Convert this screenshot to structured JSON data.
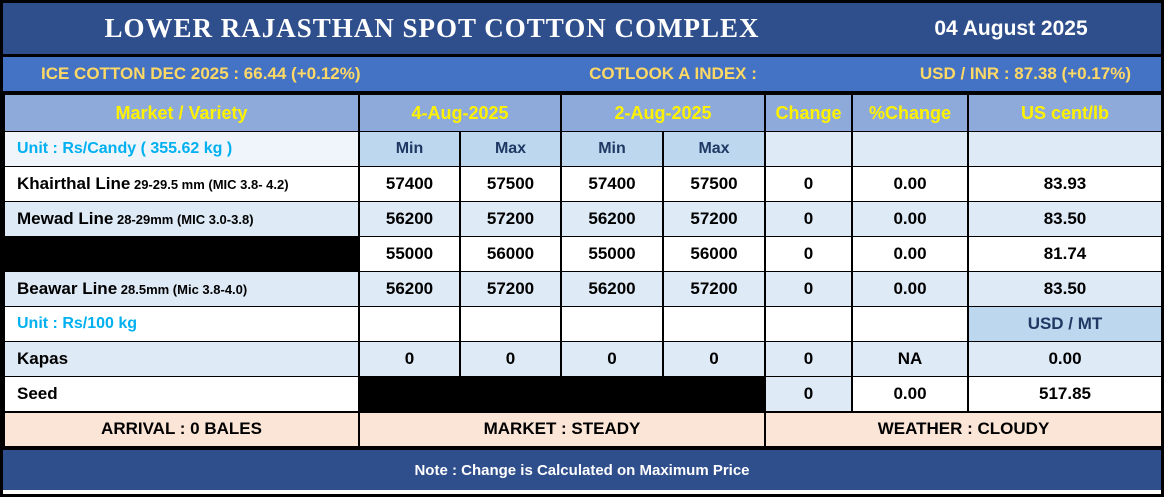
{
  "colors": {
    "band_dark": "#2F4E8C",
    "ticker_blue": "#4472C4",
    "header_blue": "#8EAADB",
    "minmax_blue": "#BDD7EE",
    "row_shade": "#DEEAF6",
    "unit_row_tint": "#EFF5FB",
    "footer_peach": "#FBE5D6",
    "gold_text": "#FFD966",
    "yellow_text": "#FFF200",
    "navy_text": "#1F3864",
    "cyan_text": "#00B0F0"
  },
  "title_bar": {
    "title": "LOWER RAJASTHAN SPOT COTTON COMPLEX",
    "date": "04 August 2025"
  },
  "ticker": {
    "ice_cotton": "ICE COTTON DEC 2025 : 66.44 (+0.12%)",
    "cotlook": "COTLOOK A INDEX :",
    "usd_inr": "USD / INR : 87.38 (+0.17%)"
  },
  "table": {
    "headers": {
      "market_variety": "Market / Variety",
      "date_current": "4-Aug-2025",
      "date_previous": "2-Aug-2025",
      "change": "Change",
      "pct_change": "%Change",
      "us_cent_lb": "US cent/lb",
      "min": "Min",
      "max": "Max"
    },
    "unit_candy_label": "Unit : Rs/Candy ( 355.62 kg )",
    "unit_100kg_label": "Unit : Rs/100 kg",
    "usd_mt_label": "USD / MT",
    "candy_rows": [
      {
        "label": "Khairthal Line",
        "spec": "29-29.5 mm (MIC 3.8- 4.2)",
        "label_redacted": false,
        "shaded": false,
        "values": [
          "57400",
          "57500",
          "57400",
          "57500",
          "0",
          "0.00",
          "83.93"
        ]
      },
      {
        "label": "Mewad Line",
        "spec": "28-29mm (MIC 3.0-3.8)",
        "label_redacted": false,
        "shaded": true,
        "values": [
          "56200",
          "57200",
          "56200",
          "57200",
          "0",
          "0.00",
          "83.50"
        ]
      },
      {
        "label": "",
        "spec": "",
        "label_redacted": true,
        "shaded": false,
        "values": [
          "55000",
          "56000",
          "55000",
          "56000",
          "0",
          "0.00",
          "81.74"
        ]
      },
      {
        "label": "Beawar Line",
        "spec": "28.5mm (Mic 3.8-4.0)",
        "label_redacted": false,
        "shaded": true,
        "values": [
          "56200",
          "57200",
          "56200",
          "57200",
          "0",
          "0.00",
          "83.50"
        ]
      }
    ],
    "kg_rows": [
      {
        "label": "Kapas",
        "spec": "",
        "label_redacted": false,
        "shaded": true,
        "values": [
          "0",
          "0",
          "0",
          "0",
          "0",
          "NA",
          "0.00"
        ]
      },
      {
        "label": "Seed",
        "spec": "",
        "label_redacted": false,
        "shaded": false,
        "values_redacted": [
          0,
          1,
          2,
          3
        ],
        "cell_shaded": [
          4
        ],
        "values": [
          "",
          "",
          "",
          "",
          "0",
          "0.00",
          "517.85"
        ]
      }
    ]
  },
  "footer": {
    "arrival": "ARRIVAL : 0 BALES",
    "market": "MARKET : STEADY",
    "weather": "WEATHER : CLOUDY"
  },
  "note": "Note : Change is Calculated on Maximum Price"
}
